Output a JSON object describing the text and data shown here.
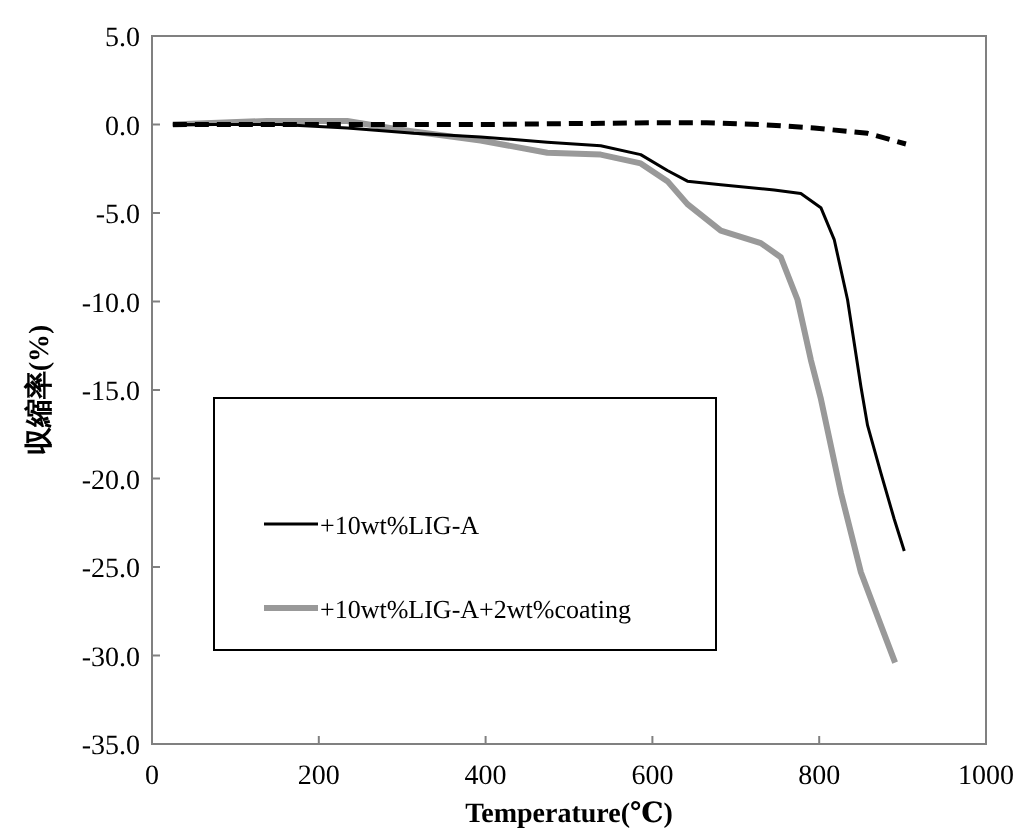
{
  "chart_data": {
    "type": "line",
    "xlabel": "Temperature(℃)",
    "ylabel": "収縮率(%)",
    "xlim": [
      0,
      1000
    ],
    "xticks": [
      0,
      200,
      400,
      600,
      800,
      1000
    ],
    "ylim": [
      -35,
      5
    ],
    "yticks": [
      {
        "value": 5,
        "label": "5.0"
      },
      {
        "value": 0,
        "label": "0.0"
      },
      {
        "value": -5,
        "label": "-5.0"
      },
      {
        "value": -10,
        "label": "-10.0"
      },
      {
        "value": -15,
        "label": "-15.0"
      },
      {
        "value": -20,
        "label": "-20.0"
      },
      {
        "value": -25,
        "label": "-25.0"
      },
      {
        "value": -30,
        "label": "-30.0"
      },
      {
        "value": -35,
        "label": "-35.0"
      }
    ],
    "legend": "bottom left",
    "grid": false,
    "marker": "none",
    "series": [
      {
        "color": "#000000",
        "line_style": "dashed",
        "x": [
          25,
          200,
          400,
          600,
          665,
          730,
          794,
          858,
          904
        ],
        "values": [
          0,
          0,
          0,
          0.1,
          0.1,
          0,
          -0.2,
          -0.5,
          -1.1
        ]
      },
      {
        "name": "+10wt%LIG-A",
        "color": "#000000",
        "line_style": "solid",
        "x": [
          25,
          154,
          234,
          314,
          394,
          474,
          538,
          586,
          618,
          642,
          682,
          746,
          778,
          802,
          818,
          834,
          850,
          858,
          874,
          890,
          902
        ],
        "values": [
          0,
          0,
          -0.2,
          -0.5,
          -0.7,
          -1.0,
          -1.2,
          -1.7,
          -2.6,
          -3.2,
          -3.4,
          -3.7,
          -3.9,
          -4.7,
          -6.5,
          -9.9,
          -14.8,
          -17.0,
          -19.7,
          -22.3,
          -24.1
        ]
      },
      {
        "name": "+10wt%LIG-A+2wt%coating",
        "color": "#999999",
        "line_style": "solid",
        "x": [
          25,
          138,
          234,
          298,
          394,
          474,
          538,
          586,
          618,
          642,
          682,
          730,
          754,
          774,
          790,
          802,
          826,
          850,
          874,
          891
        ],
        "values": [
          0,
          0.2,
          0.2,
          -0.3,
          -0.9,
          -1.6,
          -1.7,
          -2.2,
          -3.2,
          -4.5,
          -6.0,
          -6.7,
          -7.5,
          -9.9,
          -13.3,
          -15.5,
          -20.8,
          -25.3,
          -28.3,
          -30.4
        ]
      }
    ]
  }
}
